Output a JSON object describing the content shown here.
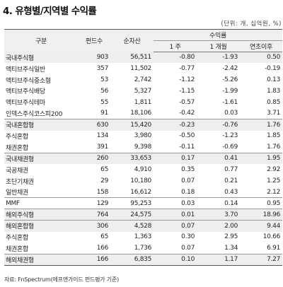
{
  "title": "4. 유형별/지역별 수익률",
  "unit_note": "(단위: 개, 십억원, %)",
  "table": {
    "headers": {
      "category": "구분",
      "fund_count": "펀드수",
      "net_assets": "순자산",
      "returns_group": "수익률",
      "ret_1w": "1 주",
      "ret_1m": "1 개월",
      "ret_ytd": "연초이후"
    },
    "rows": [
      {
        "name": "국내주식형",
        "funds": "903",
        "assets": "56,511",
        "w1": "-0.80",
        "m1": "-1.93",
        "ytd": "0.50",
        "shade": true,
        "sep": false
      },
      {
        "name": "액티브주식일반",
        "funds": "357",
        "assets": "11,502",
        "w1": "-0.77",
        "m1": "-2.42",
        "ytd": "-0.19",
        "shade": false,
        "sep": false
      },
      {
        "name": "액티브주식중소형",
        "funds": "53",
        "assets": "2,742",
        "w1": "-1.12",
        "m1": "-5.26",
        "ytd": "0.13",
        "shade": false,
        "sep": false
      },
      {
        "name": "액티브주식배당",
        "funds": "56",
        "assets": "5,327",
        "w1": "-1.15",
        "m1": "-1.99",
        "ytd": "1.83",
        "shade": false,
        "sep": false
      },
      {
        "name": "액티브주식테마",
        "funds": "55",
        "assets": "1,811",
        "w1": "-0.57",
        "m1": "-1.61",
        "ytd": "0.85",
        "shade": false,
        "sep": false
      },
      {
        "name": "인덱스주식코스피200",
        "funds": "91",
        "assets": "18,106",
        "w1": "-0.42",
        "m1": "0.03",
        "ytd": "3.71",
        "shade": false,
        "sep": false
      },
      {
        "name": "국내혼합형",
        "funds": "630",
        "assets": "15,420",
        "w1": "-0.23",
        "m1": "-0.76",
        "ytd": "1.76",
        "shade": true,
        "sep": true
      },
      {
        "name": "주식혼합",
        "funds": "134",
        "assets": "3,980",
        "w1": "-0.50",
        "m1": "-1.23",
        "ytd": "1.85",
        "shade": false,
        "sep": false
      },
      {
        "name": "채권혼합",
        "funds": "391",
        "assets": "9,398",
        "w1": "-0.11",
        "m1": "-0.69",
        "ytd": "1.76",
        "shade": false,
        "sep": false
      },
      {
        "name": "국내채권형",
        "funds": "260",
        "assets": "33,653",
        "w1": "0.17",
        "m1": "0.41",
        "ytd": "1.95",
        "shade": true,
        "sep": true
      },
      {
        "name": "국공채권",
        "funds": "65",
        "assets": "4,910",
        "w1": "0.35",
        "m1": "0.77",
        "ytd": "2.92",
        "shade": false,
        "sep": false
      },
      {
        "name": "초단기채권",
        "funds": "29",
        "assets": "10,180",
        "w1": "0.07",
        "m1": "0.21",
        "ytd": "1.25",
        "shade": false,
        "sep": false
      },
      {
        "name": "일반채권",
        "funds": "158",
        "assets": "16,612",
        "w1": "0.18",
        "m1": "0.43",
        "ytd": "2.12",
        "shade": false,
        "sep": false
      },
      {
        "name": "MMF",
        "funds": "129",
        "assets": "95,253",
        "w1": "0.03",
        "m1": "0.14",
        "ytd": "0.95",
        "shade": false,
        "sep": true
      },
      {
        "name": "해외주식형",
        "funds": "764",
        "assets": "24,575",
        "w1": "0.01",
        "m1": "3.70",
        "ytd": "18.96",
        "shade": true,
        "sep": true
      },
      {
        "name": "해외혼합형",
        "funds": "306",
        "assets": "4,528",
        "w1": "0.07",
        "m1": "2.00",
        "ytd": "9.44",
        "shade": true,
        "sep": true
      },
      {
        "name": "주식혼합",
        "funds": "65",
        "assets": "1,363",
        "w1": "0.30",
        "m1": "2.95",
        "ytd": "10.66",
        "shade": false,
        "sep": false
      },
      {
        "name": "채권혼합",
        "funds": "166",
        "assets": "1,736",
        "w1": "0.07",
        "m1": "1.34",
        "ytd": "6.91",
        "shade": false,
        "sep": false
      },
      {
        "name": "해외채권형",
        "funds": "166",
        "assets": "6,835",
        "w1": "0.10",
        "m1": "1.17",
        "ytd": "7.27",
        "shade": true,
        "sep": true
      }
    ]
  },
  "source": "자료: FnSpectrum(에프앤가이드 펀드평가 기준)"
}
